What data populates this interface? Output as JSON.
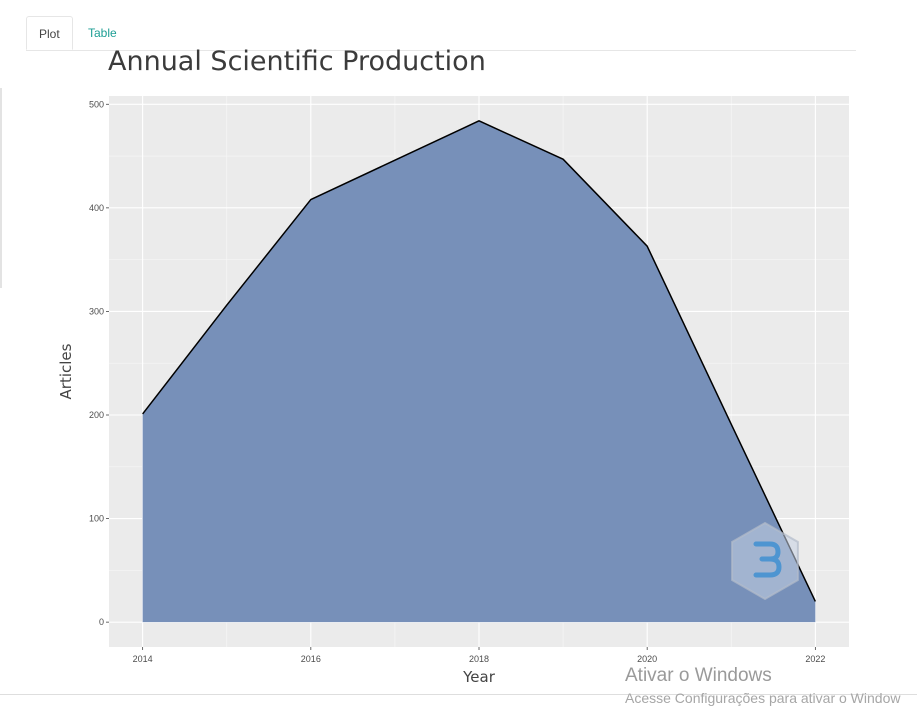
{
  "tabs": [
    {
      "label": "Plot",
      "active": true
    },
    {
      "label": "Table",
      "active": false
    }
  ],
  "chart_data": {
    "type": "area",
    "title": "Annual Scientific Production",
    "xlabel": "Year",
    "ylabel": "Articles",
    "x": [
      2014,
      2015,
      2016,
      2017,
      2018,
      2019,
      2020,
      2021,
      2022
    ],
    "values": [
      201,
      306,
      408,
      446,
      484,
      447,
      363,
      191,
      20
    ],
    "xticks": [
      "2014",
      "2016",
      "2018",
      "2020",
      "2022"
    ],
    "yticks": [
      "0",
      "100",
      "200",
      "300",
      "400",
      "500"
    ],
    "xlim": [
      2013.6,
      2022.4
    ],
    "ylim": [
      -24,
      508
    ],
    "grid": true,
    "fill_color": "#7790b9",
    "line_color": "#000000",
    "panel_background": "#ebebeb"
  },
  "watermark": {
    "line1": "Ativar o Windows",
    "line2": "Acesse Configurações para ativar o Window"
  }
}
